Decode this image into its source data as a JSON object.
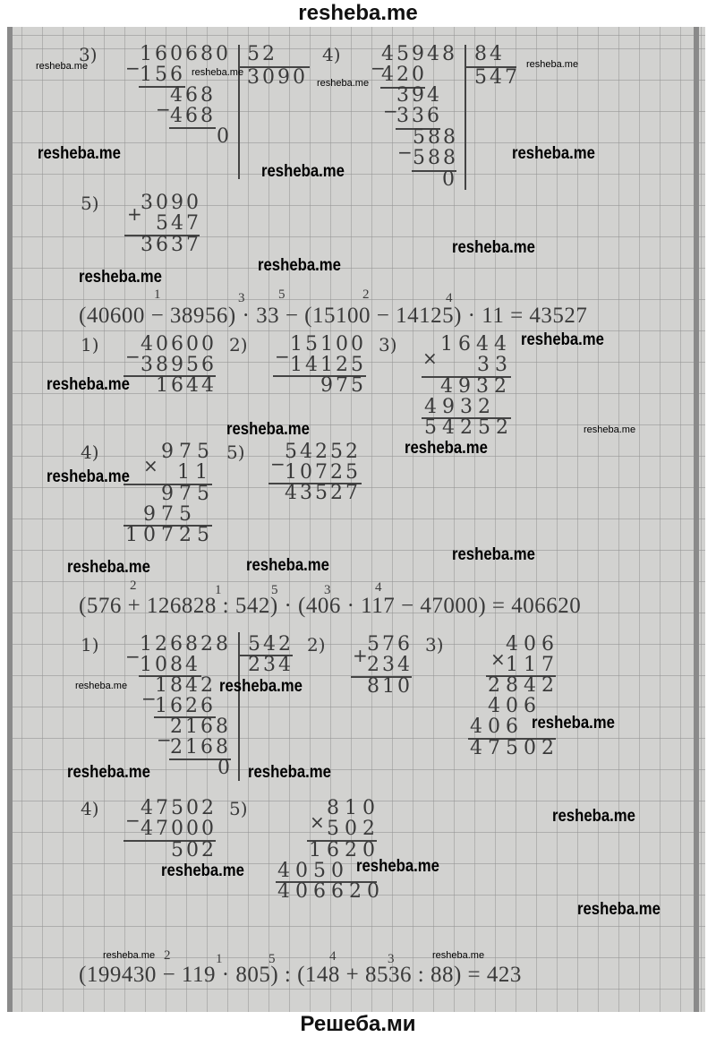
{
  "header": {
    "site": "resheba.me"
  },
  "footer": {
    "site": "Решеба.ми"
  },
  "watermark": "resheba.me",
  "operators": {
    "minus": "−",
    "plus": "+",
    "times": "×"
  },
  "block_a": {
    "step3": {
      "label": "3)",
      "dividend": "160680",
      "divisor": "52",
      "quotient": "3090",
      "rows": [
        "156",
        "468",
        "468",
        "0"
      ]
    },
    "step4": {
      "label": "4)",
      "dividend": "45948",
      "divisor": "84",
      "quotient": "547",
      "rows": [
        "420",
        "394",
        "336",
        "588",
        "588",
        "0"
      ]
    },
    "step5": {
      "label": "5)",
      "a": "3090",
      "b": "547",
      "result": "3637"
    }
  },
  "block_b": {
    "expression": "(40600 − 38956) · 33 − (15100 − 14125) · 11 = 43527",
    "order": [
      "1",
      "3",
      "5",
      "2",
      "4"
    ],
    "step1": {
      "label": "1)",
      "a": "40600",
      "b": "38956",
      "result": "1644"
    },
    "step2": {
      "label": "2)",
      "a": "15100",
      "b": "14125",
      "result": "975"
    },
    "step3": {
      "label": "3)",
      "a": "1644",
      "b": "33",
      "partial1": "4932",
      "partial2": "4932",
      "result": "54252"
    },
    "step4": {
      "label": "4)",
      "a": "975",
      "b": "11",
      "partial1": "975",
      "partial2": "975",
      "result": "10725"
    },
    "step5": {
      "label": "5)",
      "a": "54252",
      "b": "10725",
      "result": "43527"
    }
  },
  "block_c": {
    "expression": "(576 + 126828 : 542) · (406 · 117 − 47000) = 406620",
    "order": [
      "2",
      "1",
      "5",
      "3",
      "4"
    ],
    "step1": {
      "label": "1)",
      "dividend": "126828",
      "divisor": "542",
      "quotient": "234",
      "rows": [
        "1084",
        "1842",
        "1626",
        "2168",
        "2168",
        "0"
      ]
    },
    "step2": {
      "label": "2)",
      "a": "576",
      "b": "234",
      "result": "810"
    },
    "step3": {
      "label": "3)",
      "a": "406",
      "b": "117",
      "partial1": "2842",
      "partial2": "406",
      "partial3": "406",
      "result": "47502"
    },
    "step4": {
      "label": "4)",
      "a": "47502",
      "b": "47000",
      "result": "502"
    },
    "step5": {
      "label": "5)",
      "a": "810",
      "b": "502",
      "partial1": "1620",
      "partial2": "4050",
      "result": "406620"
    }
  },
  "block_d": {
    "expression": "(199430 − 119 · 805) : (148 + 8536 : 88) = 423",
    "order": [
      "2",
      "1",
      "5",
      "4",
      "3"
    ]
  }
}
